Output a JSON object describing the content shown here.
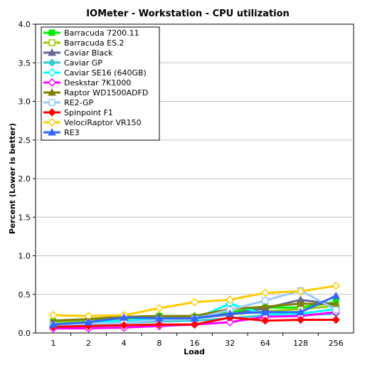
{
  "chart_data": {
    "type": "line",
    "title": "IOMeter - Workstation - CPU utilization",
    "xlabel": "Load",
    "ylabel": "Percent (Lower is better)",
    "categories": [
      "1",
      "2",
      "4",
      "8",
      "16",
      "32",
      "64",
      "128",
      "256"
    ],
    "ylim": [
      0,
      4.0
    ],
    "yticks": [
      "0.0",
      "0.5",
      "1.0",
      "1.5",
      "2.0",
      "2.5",
      "3.0",
      "3.5",
      "4.0"
    ],
    "grid": "horizontal",
    "legend_position": "top-left",
    "series": [
      {
        "name": "Barracuda 7200.11",
        "color": "#00ee00",
        "marker": "square",
        "values": [
          0.15,
          0.17,
          0.19,
          0.22,
          0.21,
          0.27,
          0.33,
          0.33,
          0.4
        ]
      },
      {
        "name": "Barracuda ES.2",
        "color": "#99cc00",
        "marker": "square-open",
        "values": [
          0.13,
          0.15,
          0.17,
          0.19,
          0.2,
          0.24,
          0.28,
          0.31,
          0.35
        ]
      },
      {
        "name": "Caviar Black",
        "color": "#666699",
        "marker": "triangle",
        "values": [
          0.1,
          0.13,
          0.15,
          0.18,
          0.19,
          0.24,
          0.32,
          0.43,
          0.37
        ]
      },
      {
        "name": "Caviar GP",
        "color": "#33cccc",
        "marker": "diamond",
        "values": [
          0.08,
          0.11,
          0.13,
          0.15,
          0.16,
          0.19,
          0.23,
          0.23,
          0.25
        ]
      },
      {
        "name": "Caviar SE16 (640GB)",
        "color": "#00ffff",
        "marker": "diamond-open",
        "values": [
          0.11,
          0.14,
          0.16,
          0.18,
          0.18,
          0.38,
          0.24,
          0.25,
          0.31
        ]
      },
      {
        "name": "Deskstar 7K1000",
        "color": "#ff00ff",
        "marker": "diamond-open",
        "values": [
          0.06,
          0.06,
          0.07,
          0.09,
          0.11,
          0.14,
          0.21,
          0.22,
          0.27
        ]
      },
      {
        "name": "Raptor WD1500ADFD",
        "color": "#808000",
        "marker": "triangle",
        "values": [
          0.16,
          0.18,
          0.21,
          0.22,
          0.22,
          0.31,
          0.34,
          0.38,
          0.37
        ]
      },
      {
        "name": "RE2-GP",
        "color": "#99ccff",
        "marker": "square-open",
        "values": [
          0.1,
          0.12,
          0.13,
          0.17,
          0.18,
          0.3,
          0.42,
          0.55,
          0.3
        ]
      },
      {
        "name": "Spinpoint F1",
        "color": "#ff0000",
        "marker": "diamond",
        "values": [
          0.08,
          0.09,
          0.1,
          0.11,
          0.11,
          0.2,
          0.16,
          0.17,
          0.17
        ]
      },
      {
        "name": "VelociRaptor VR150",
        "color": "#ffcc00",
        "marker": "diamond-open",
        "values": [
          0.23,
          0.22,
          0.23,
          0.32,
          0.4,
          0.43,
          0.52,
          0.54,
          0.61
        ]
      },
      {
        "name": "RE3",
        "color": "#3366ff",
        "marker": "triangle",
        "values": [
          0.11,
          0.14,
          0.2,
          0.19,
          0.19,
          0.25,
          0.27,
          0.27,
          0.48
        ]
      }
    ]
  }
}
